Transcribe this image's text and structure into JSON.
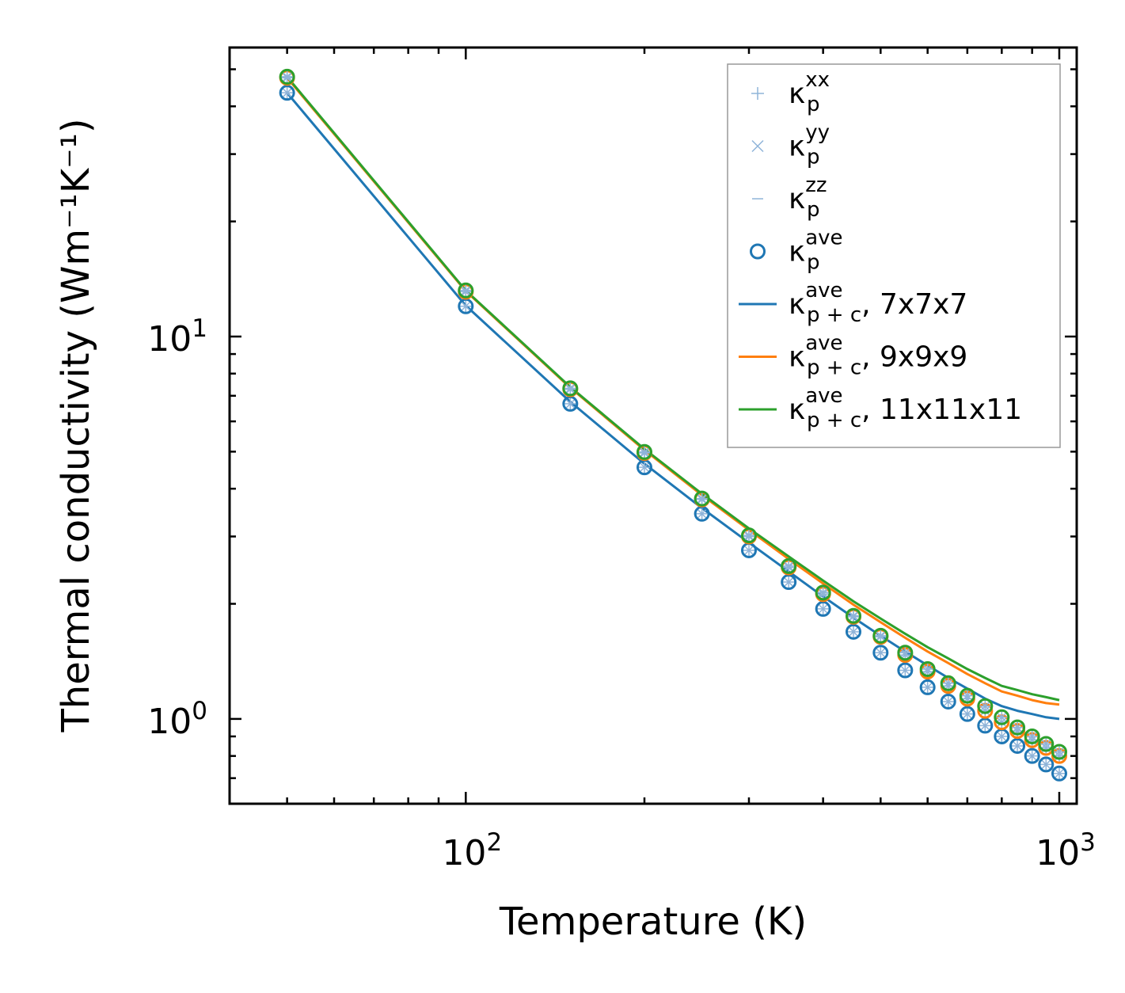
{
  "chart_data": {
    "type": "line",
    "title": "",
    "xlabel": "Temperature (K)",
    "ylabel": "Thermal conductivity (Wm⁻¹K⁻¹)",
    "xscale": "log",
    "yscale": "log",
    "xlim": [
      40,
      1070
    ],
    "ylim": [
      0.6,
      57
    ],
    "x_tick_labels": [
      {
        "value": 100,
        "base": "10",
        "exp": "2"
      },
      {
        "value": 1000,
        "base": "10",
        "exp": "3"
      }
    ],
    "y_tick_labels": [
      {
        "value": 1,
        "base": "10",
        "exp": "0"
      },
      {
        "value": 10,
        "base": "10",
        "exp": "1"
      }
    ],
    "legend_position": "top-right",
    "colors": {
      "c7": "#1f77b4",
      "c9": "#ff7f0e",
      "c11": "#2ca02c",
      "faint": "#8fb4d9",
      "frame": "#000000",
      "legend_edge": "#999999"
    },
    "legend": [
      {
        "kind": "plus",
        "color": "#8fb4d9",
        "main": "κ",
        "sup": "xx",
        "sub": "p",
        "tail": ""
      },
      {
        "kind": "cross",
        "color": "#8fb4d9",
        "main": "κ",
        "sup": "yy",
        "sub": "p",
        "tail": ""
      },
      {
        "kind": "dash",
        "color": "#8fb4d9",
        "main": "κ",
        "sup": "zz",
        "sub": "p",
        "tail": ""
      },
      {
        "kind": "circle",
        "color": "#1f77b4",
        "main": "κ",
        "sup": "ave",
        "sub": "p",
        "tail": ""
      },
      {
        "kind": "line",
        "color": "#1f77b4",
        "main": "κ",
        "sup": "ave",
        "sub": "p + c",
        "tail": ", 7x7x7"
      },
      {
        "kind": "line",
        "color": "#ff7f0e",
        "main": "κ",
        "sup": "ave",
        "sub": "p + c",
        "tail": ", 9x9x9"
      },
      {
        "kind": "line",
        "color": "#2ca02c",
        "main": "κ",
        "sup": "ave",
        "sub": "p + c",
        "tail": ", 11x11x11"
      }
    ],
    "x": [
      50,
      100,
      150,
      200,
      250,
      300,
      350,
      400,
      450,
      500,
      550,
      600,
      650,
      700,
      750,
      800,
      850,
      900,
      950,
      1000
    ],
    "series": [
      {
        "name": "7x7x7",
        "color": "#1f77b4",
        "kappa_p": [
          43.4,
          12.0,
          6.67,
          4.55,
          3.44,
          2.76,
          2.28,
          1.94,
          1.69,
          1.49,
          1.34,
          1.21,
          1.11,
          1.03,
          0.96,
          0.9,
          0.85,
          0.8,
          0.76,
          0.72
        ],
        "kappa_pc": [
          43.4,
          12.05,
          6.75,
          4.65,
          3.56,
          2.89,
          2.43,
          2.09,
          1.84,
          1.65,
          1.5,
          1.38,
          1.28,
          1.2,
          1.13,
          1.08,
          1.05,
          1.03,
          1.01,
          1.0
        ]
      },
      {
        "name": "9x9x9",
        "color": "#ff7f0e",
        "kappa_p": [
          47.5,
          13.1,
          7.28,
          4.96,
          3.75,
          3.0,
          2.49,
          2.12,
          1.85,
          1.64,
          1.47,
          1.33,
          1.22,
          1.13,
          1.05,
          0.98,
          0.93,
          0.88,
          0.84,
          0.8
        ],
        "kappa_pc": [
          47.5,
          13.15,
          7.35,
          5.05,
          3.85,
          3.12,
          2.62,
          2.26,
          1.99,
          1.79,
          1.63,
          1.5,
          1.4,
          1.31,
          1.24,
          1.18,
          1.15,
          1.12,
          1.1,
          1.09
        ]
      },
      {
        "name": "11x11x11",
        "color": "#2ca02c",
        "kappa_p": [
          47.8,
          13.2,
          7.32,
          4.99,
          3.77,
          3.02,
          2.51,
          2.14,
          1.86,
          1.65,
          1.49,
          1.35,
          1.24,
          1.15,
          1.08,
          1.01,
          0.95,
          0.9,
          0.86,
          0.82
        ],
        "kappa_pc": [
          47.8,
          13.2,
          7.38,
          5.08,
          3.88,
          3.15,
          2.66,
          2.3,
          2.03,
          1.83,
          1.67,
          1.54,
          1.44,
          1.35,
          1.28,
          1.22,
          1.19,
          1.16,
          1.14,
          1.12
        ]
      }
    ]
  }
}
